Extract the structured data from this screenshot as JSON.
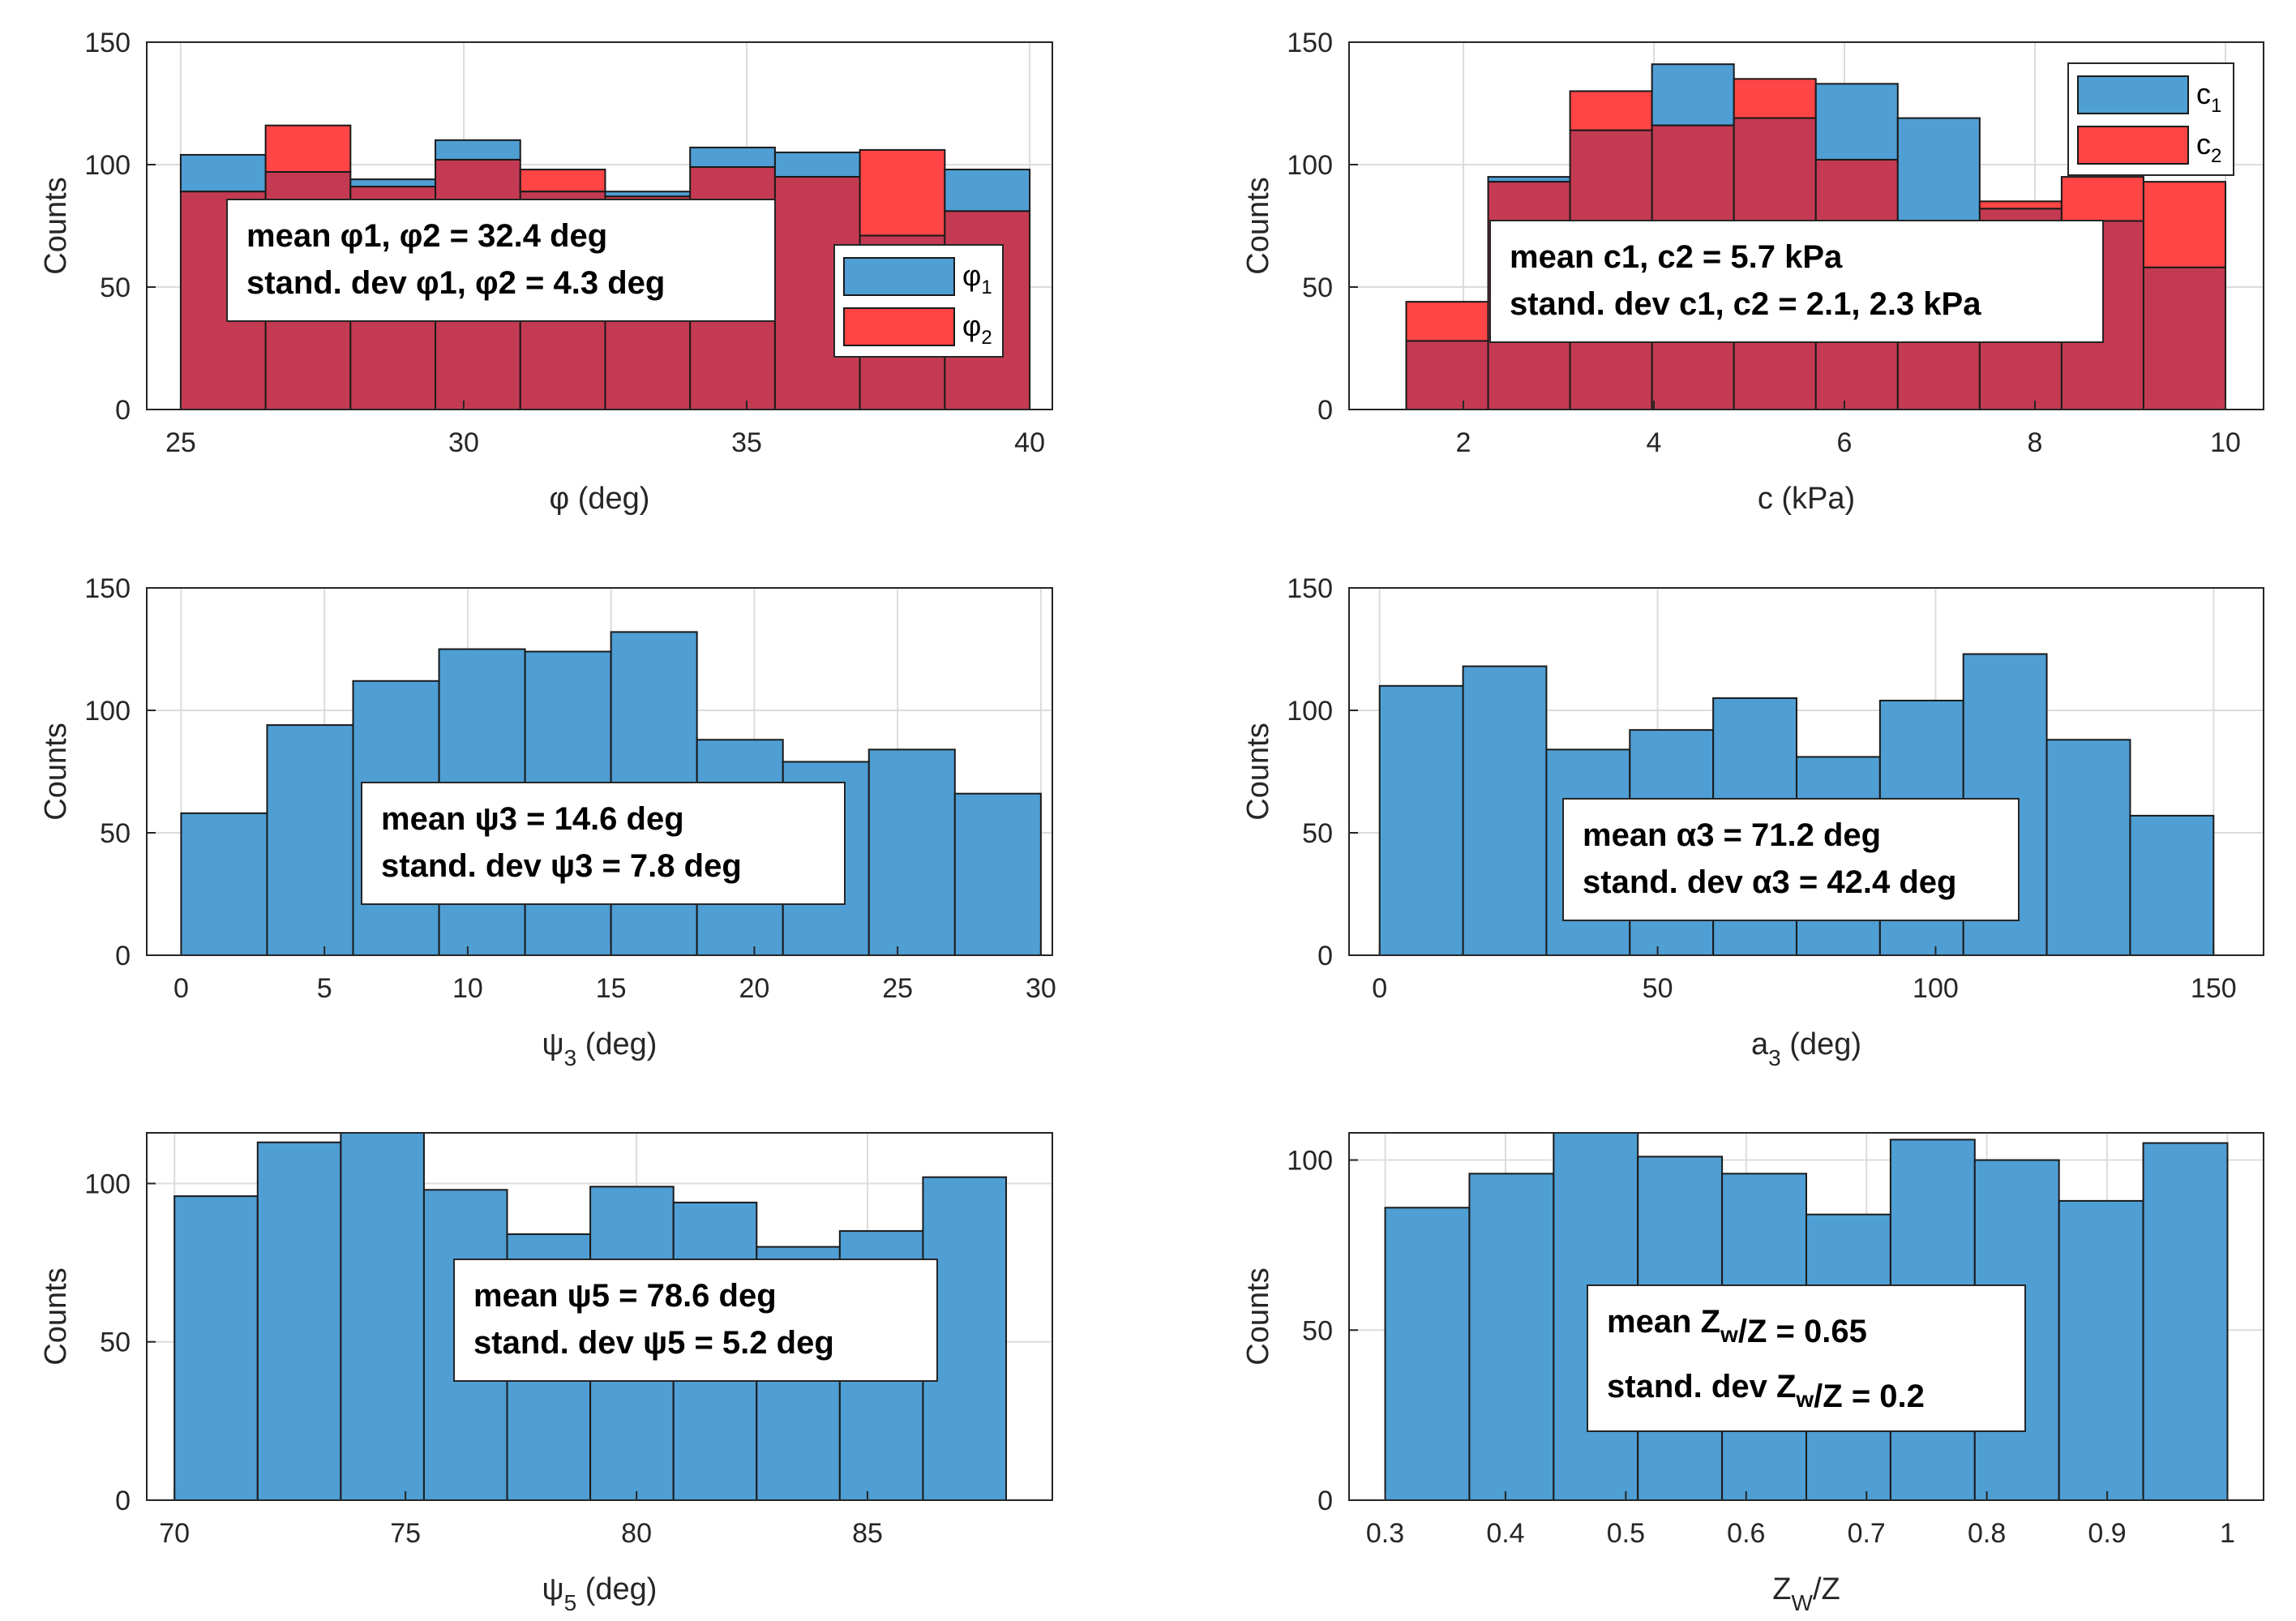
{
  "colors": {
    "blue": "#4f9ed4",
    "red": "#ff4545",
    "overlap": "#c43a52",
    "grid": "#dcdcdc",
    "edge": "#1a1a1a"
  },
  "chart_data": [
    {
      "id": "phi",
      "type": "bar",
      "title": "",
      "xlabel": {
        "base": "φ (deg)",
        "sub": ""
      },
      "ylabel": "Counts",
      "xlim": [
        24.4,
        40.4
      ],
      "ylim": [
        0,
        150
      ],
      "xticks": [
        25,
        30,
        35,
        40
      ],
      "yticks": [
        0,
        50,
        100,
        150
      ],
      "grid": true,
      "edges": [
        25,
        26.5,
        28,
        29.5,
        31,
        32.5,
        34,
        35.5,
        37,
        38.5,
        40
      ],
      "series": [
        {
          "name": "φ1",
          "color": "blue",
          "values": [
            104,
            97,
            94,
            110,
            89,
            89,
            107,
            105,
            71,
            98
          ]
        },
        {
          "name": "φ2",
          "color": "red",
          "values": [
            89,
            116,
            91,
            102,
            98,
            87,
            99,
            95,
            106,
            81
          ]
        }
      ],
      "legend": {
        "position": "right",
        "entries": [
          {
            "base": "φ",
            "sub": "1",
            "color": "blue"
          },
          {
            "base": "φ",
            "sub": "2",
            "color": "red"
          }
        ]
      },
      "annotation": [
        {
          "parts": [
            {
              "t": "mean φ1, φ2 = 32.4 deg"
            }
          ]
        },
        {
          "parts": [
            {
              "t": "stand. dev φ1, φ2 = 4.3 deg"
            }
          ]
        }
      ]
    },
    {
      "id": "c",
      "type": "bar",
      "title": "",
      "xlabel": {
        "base": "c (kPa)",
        "sub": ""
      },
      "ylabel": "Counts",
      "xlim": [
        0.8,
        10.4
      ],
      "ylim": [
        0,
        150
      ],
      "xticks": [
        2,
        4,
        6,
        8,
        10
      ],
      "yticks": [
        0,
        50,
        100,
        150
      ],
      "grid": true,
      "edges": [
        1.4,
        2.26,
        3.12,
        3.98,
        4.84,
        5.7,
        6.56,
        7.42,
        8.28,
        9.14,
        10
      ],
      "series": [
        {
          "name": "c1",
          "color": "blue",
          "values": [
            28,
            95,
            114,
            141,
            119,
            133,
            119,
            82,
            77,
            58
          ]
        },
        {
          "name": "c2",
          "color": "red",
          "values": [
            44,
            93,
            130,
            116,
            135,
            102,
            72,
            85,
            95,
            93
          ]
        }
      ],
      "legend": {
        "position": "top-right",
        "entries": [
          {
            "base": "c",
            "sub": "1",
            "color": "blue"
          },
          {
            "base": "c",
            "sub": "2",
            "color": "red"
          }
        ]
      },
      "annotation": [
        {
          "parts": [
            {
              "t": "mean c1, c2 = 5.7 kPa"
            }
          ]
        },
        {
          "parts": [
            {
              "t": "stand. dev c1, c2 = 2.1, 2.3 kPa"
            }
          ]
        }
      ]
    },
    {
      "id": "psi3",
      "type": "bar",
      "title": "",
      "xlabel": {
        "base": "ψ",
        "sub": "3",
        "after": " (deg)"
      },
      "ylabel": "Counts",
      "xlim": [
        -1.2,
        30.4
      ],
      "ylim": [
        0,
        150
      ],
      "xticks": [
        0,
        5,
        10,
        15,
        20,
        25,
        30
      ],
      "yticks": [
        0,
        50,
        100,
        150
      ],
      "grid": true,
      "edges": [
        0,
        3,
        6,
        9,
        12,
        15,
        18,
        21,
        24,
        27,
        30
      ],
      "series": [
        {
          "name": "ψ3",
          "color": "blue",
          "values": [
            58,
            94,
            112,
            125,
            124,
            132,
            88,
            79,
            84,
            66
          ]
        }
      ],
      "annotation": [
        {
          "parts": [
            {
              "t": "mean ψ3 = 14.6 deg"
            }
          ]
        },
        {
          "parts": [
            {
              "t": "stand. dev ψ3 = 7.8 deg"
            }
          ]
        }
      ]
    },
    {
      "id": "alpha3",
      "type": "bar",
      "title": "",
      "xlabel": {
        "base": "a",
        "sub": "3",
        "after": " (deg)"
      },
      "ylabel": "Counts",
      "xlim": [
        -5.5,
        159
      ],
      "ylim": [
        0,
        150
      ],
      "xticks": [
        0,
        50,
        100,
        150
      ],
      "yticks": [
        0,
        50,
        100,
        150
      ],
      "grid": true,
      "edges": [
        0,
        15,
        30,
        45,
        60,
        75,
        90,
        105,
        120,
        135,
        150
      ],
      "series": [
        {
          "name": "α3",
          "color": "blue",
          "values": [
            110,
            118,
            84,
            92,
            105,
            81,
            104,
            123,
            88,
            57
          ]
        }
      ],
      "annotation": [
        {
          "parts": [
            {
              "t": "mean α3 = 71.2 deg"
            }
          ]
        },
        {
          "parts": [
            {
              "t": "stand. dev α3 = 42.4 deg"
            }
          ]
        }
      ]
    },
    {
      "id": "psi5",
      "type": "bar",
      "title": "",
      "xlabel": {
        "base": "ψ",
        "sub": "5",
        "after": " (deg)"
      },
      "ylabel": "Counts",
      "xlim": [
        69.4,
        89
      ],
      "ylim": [
        0,
        116
      ],
      "xticks": [
        70,
        75,
        80,
        85
      ],
      "yticks": [
        0,
        50,
        100
      ],
      "grid": true,
      "edges": [
        70,
        71.8,
        73.6,
        75.4,
        77.2,
        79,
        80.8,
        82.6,
        84.4,
        86.2,
        88
      ],
      "series": [
        {
          "name": "ψ5",
          "color": "blue",
          "values": [
            96,
            113,
            116,
            98,
            84,
            99,
            94,
            80,
            85,
            102
          ]
        }
      ],
      "annotation": [
        {
          "parts": [
            {
              "t": "mean ψ5 = 78.6 deg"
            }
          ]
        },
        {
          "parts": [
            {
              "t": "stand. dev ψ5 = 5.2 deg"
            }
          ]
        }
      ]
    },
    {
      "id": "zw",
      "type": "bar",
      "title": "",
      "xlabel": {
        "base": "Z",
        "sub": "W",
        "after": "/Z"
      },
      "ylabel": "Counts",
      "xlim": [
        0.27,
        1.03
      ],
      "ylim": [
        0,
        108
      ],
      "xticks": [
        0.3,
        0.4,
        0.5,
        0.6,
        0.7,
        0.8,
        0.9,
        1
      ],
      "yticks": [
        0,
        50,
        100
      ],
      "grid": true,
      "edges": [
        0.3,
        0.37,
        0.44,
        0.51,
        0.58,
        0.65,
        0.72,
        0.79,
        0.86,
        0.93,
        1.0
      ],
      "series": [
        {
          "name": "Zw/Z",
          "color": "blue",
          "values": [
            86,
            96,
            108,
            101,
            96,
            84,
            106,
            100,
            88,
            105
          ]
        }
      ],
      "annotation": [
        {
          "parts": [
            {
              "t": "mean Z"
            },
            {
              "t": "w",
              "sub": true
            },
            {
              "t": "/Z = 0.65"
            }
          ]
        },
        {
          "parts": [
            {
              "t": "stand. dev Z"
            },
            {
              "t": "w",
              "sub": true
            },
            {
              "t": "/Z = 0.2"
            }
          ]
        }
      ]
    }
  ]
}
